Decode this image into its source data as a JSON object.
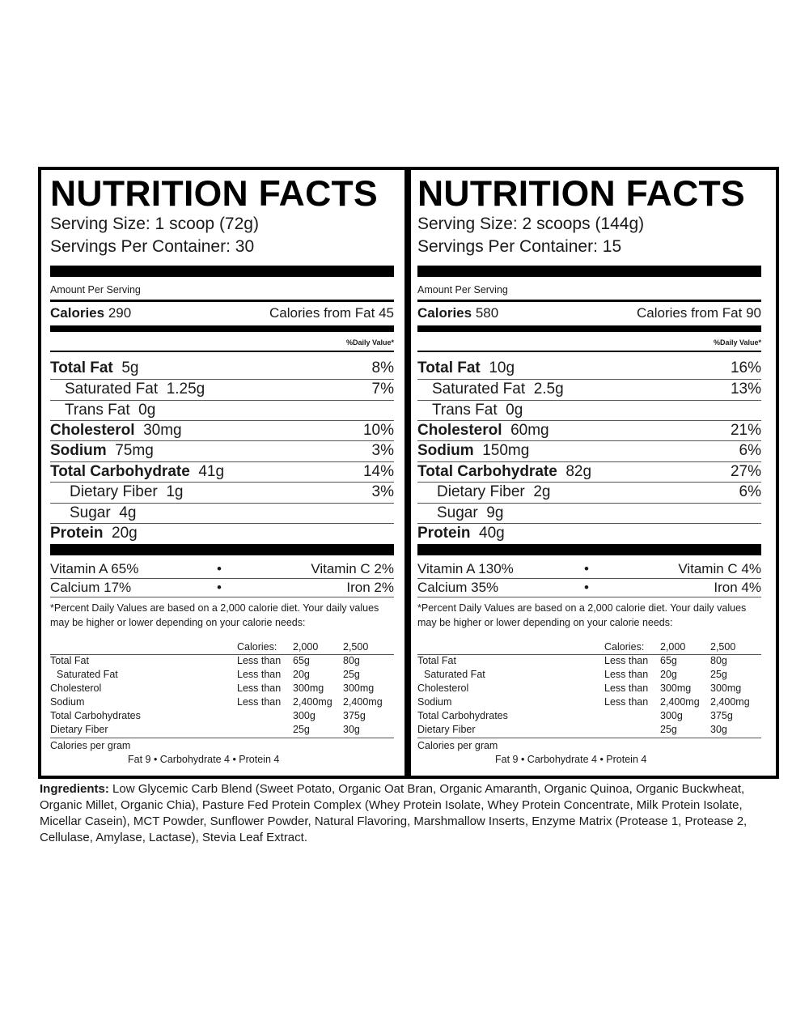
{
  "panels": [
    {
      "title": "NUTRITION FACTS",
      "serving_size": "Serving Size: 1 scoop (72g)",
      "servings_per_container": "Servings Per Container: 30",
      "amount_per_serving": "Amount Per Serving",
      "calories_label": "Calories",
      "calories_value": "290",
      "calories_from_fat": "Calories from Fat  45",
      "daily_value_header": "%Daily Value*",
      "nutrients": [
        {
          "name": "Total Fat",
          "amount": "5g",
          "pct": "8%"
        },
        {
          "name": "Saturated Fat",
          "amount": "1.25g",
          "pct": "7%"
        },
        {
          "name": "Trans Fat",
          "amount": "0g",
          "pct": ""
        },
        {
          "name": "Cholesterol",
          "amount": "30mg",
          "pct": "10%"
        },
        {
          "name": "Sodium",
          "amount": "75mg",
          "pct": "3%"
        },
        {
          "name": "Total Carbohydrate",
          "amount": "41g",
          "pct": "14%"
        },
        {
          "name": "Dietary Fiber",
          "amount": "1g",
          "pct": "3%"
        },
        {
          "name": "Sugar",
          "amount": "4g",
          "pct": ""
        },
        {
          "name": "Protein",
          "amount": "20g",
          "pct": ""
        }
      ],
      "vitamins": [
        {
          "left": "Vitamin A  65%",
          "bullet": "•",
          "right": "Vitamin C  2%"
        },
        {
          "left": "Calcium 17%",
          "bullet": "•",
          "right": "Iron 2%"
        }
      ],
      "footnote": "*Percent Daily Values are based on a 2,000 calorie diet. Your daily values may be higher or lower depending on your calorie needs:",
      "dv_table": {
        "header": [
          "",
          "Calories:",
          "2,000",
          "2,500"
        ],
        "rows": [
          [
            "Total Fat",
            "Less than",
            "65g",
            "80g"
          ],
          [
            "Saturated Fat",
            "Less than",
            "20g",
            "25g"
          ],
          [
            "Cholesterol",
            "Less than",
            "300mg",
            "300mg"
          ],
          [
            "Sodium",
            "Less than",
            "2,400mg",
            "2,400mg"
          ],
          [
            "Total Carbohydrates",
            "",
            "300g",
            "375g"
          ],
          [
            "Dietary Fiber",
            "",
            "25g",
            "30g"
          ]
        ]
      },
      "calories_per_gram": "Calories per gram",
      "calories_per_gram_detail": "Fat 9  •  Carbohydrate 4  •  Protein 4"
    },
    {
      "title": "NUTRITION FACTS",
      "serving_size": "Serving Size: 2 scoops (144g)",
      "servings_per_container": "Servings Per Container: 15",
      "amount_per_serving": "Amount Per Serving",
      "calories_label": "Calories",
      "calories_value": "580",
      "calories_from_fat": "Calories from Fat  90",
      "daily_value_header": "%Daily Value*",
      "nutrients": [
        {
          "name": "Total Fat",
          "amount": "10g",
          "pct": "16%"
        },
        {
          "name": "Saturated Fat",
          "amount": "2.5g",
          "pct": "13%"
        },
        {
          "name": "Trans Fat",
          "amount": "0g",
          "pct": ""
        },
        {
          "name": "Cholesterol",
          "amount": "60mg",
          "pct": "21%"
        },
        {
          "name": "Sodium",
          "amount": "150mg",
          "pct": "6%"
        },
        {
          "name": "Total Carbohydrate",
          "amount": "82g",
          "pct": "27%"
        },
        {
          "name": "Dietary Fiber",
          "amount": "2g",
          "pct": "6%"
        },
        {
          "name": "Sugar",
          "amount": "9g",
          "pct": ""
        },
        {
          "name": "Protein",
          "amount": "40g",
          "pct": ""
        }
      ],
      "vitamins": [
        {
          "left": "Vitamin A  130%",
          "bullet": "•",
          "right": "Vitamin C  4%"
        },
        {
          "left": "Calcium 35%",
          "bullet": "•",
          "right": "Iron 4%"
        }
      ],
      "footnote": "*Percent Daily Values are based on a 2,000 calorie diet. Your daily values may be higher or lower depending on your calorie needs:",
      "dv_table": {
        "header": [
          "",
          "Calories:",
          "2,000",
          "2,500"
        ],
        "rows": [
          [
            "Total Fat",
            "Less than",
            "65g",
            "80g"
          ],
          [
            "Saturated Fat",
            "Less than",
            "20g",
            "25g"
          ],
          [
            "Cholesterol",
            "Less than",
            "300mg",
            "300mg"
          ],
          [
            "Sodium",
            "Less than",
            "2,400mg",
            "2,400mg"
          ],
          [
            "Total Carbohydrates",
            "",
            "300g",
            "375g"
          ],
          [
            "Dietary Fiber",
            "",
            "25g",
            "30g"
          ]
        ]
      },
      "calories_per_gram": "Calories per gram",
      "calories_per_gram_detail": "Fat 9  •  Carbohydrate 4  •  Protein 4"
    }
  ],
  "ingredients": {
    "label": "Ingredients:",
    "text": " Low Glycemic Carb Blend (Sweet Potato, Organic Oat Bran, Organic Amaranth, Organic Quinoa, Organic Buckwheat, Organic Millet, Organic Chia), Pasture Fed Protein Complex (Whey Protein Isolate, Whey Protein Concentrate, Milk Protein Isolate, Micellar Casein), MCT Powder, Sunflower Powder, Natural Flavoring, Marshmallow Inserts, Enzyme Matrix (Protease 1, Protease 2, Cellulase, Amylase, Lactase), Stevia Leaf Extract."
  }
}
